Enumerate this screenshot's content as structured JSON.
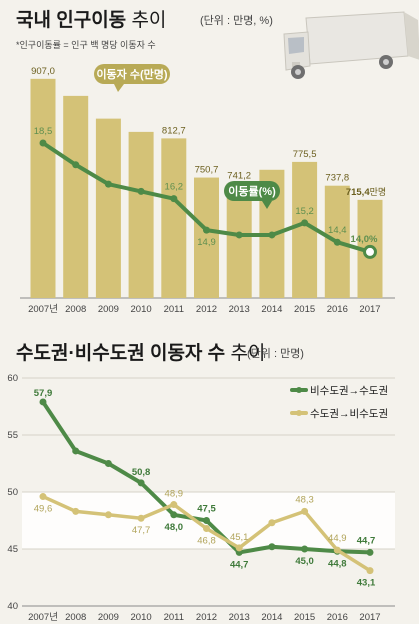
{
  "chart_data": [
    {
      "type": "bar+line",
      "title": "국내 인구이동",
      "title_suffix": "추이",
      "unit": "(단위 : 만명, %)",
      "note": "*인구이동률 = 인구 백 명당 이동자 수",
      "categories": [
        "2007년",
        "2008",
        "2009",
        "2010",
        "2011",
        "2012",
        "2013",
        "2014",
        "2015",
        "2016",
        "2017"
      ],
      "series": [
        {
          "name": "이동자 수(만명)",
          "kind": "bar",
          "values": [
            907.0,
            880.0,
            844.0,
            823.0,
            812.7,
            750.7,
            741.2,
            763.0,
            775.5,
            737.8,
            715.4
          ],
          "labels": [
            "907,0",
            "",
            "",
            "",
            "812,7",
            "750,7",
            "741,2",
            "",
            "775,5",
            "737,8",
            "715,4"
          ],
          "last_label_unit": "만명",
          "color": "#d4c277"
        },
        {
          "name": "이동률(%)",
          "kind": "line",
          "values": [
            18.5,
            17.6,
            16.8,
            16.5,
            16.2,
            14.9,
            14.7,
            14.7,
            15.2,
            14.4,
            14.0
          ],
          "labels": [
            "18,5",
            "",
            "",
            "",
            "16,2",
            "14,9",
            "",
            "",
            "15,2",
            "14,4",
            "14,0%"
          ],
          "color": "#4e8a47"
        }
      ],
      "grid": false
    },
    {
      "type": "line",
      "title": "수도권·비수도권 이동자 수",
      "title_suffix": "추이",
      "unit": "(단위 : 만명)",
      "categories": [
        "2007년",
        "2008",
        "2009",
        "2010",
        "2011",
        "2012",
        "2013",
        "2014",
        "2015",
        "2016",
        "2017"
      ],
      "yticks": [
        "60",
        "55",
        "50",
        "45",
        "40"
      ],
      "ylim": [
        40,
        60
      ],
      "series": [
        {
          "name": "비수도권→수도권",
          "values": [
            57.9,
            53.6,
            52.5,
            50.8,
            48.0,
            47.5,
            44.7,
            45.2,
            45.0,
            44.8,
            44.7
          ],
          "labels": [
            "57,9",
            "",
            "",
            "50,8",
            "48,0",
            "47,5",
            "44,7",
            "",
            "45,0",
            "44,8",
            "44,7"
          ],
          "color": "#4e8a47"
        },
        {
          "name": "수도권→비수도권",
          "values": [
            49.6,
            48.3,
            48.0,
            47.7,
            48.9,
            46.8,
            45.1,
            47.3,
            48.3,
            44.9,
            43.1
          ],
          "labels": [
            "49,6",
            "",
            "",
            "47,7",
            "48,9",
            "46,8",
            "45,1",
            "",
            "48,3",
            "44,9",
            "43,1"
          ],
          "color": "#d4c277"
        }
      ],
      "legend": "top-right",
      "grid": true
    }
  ]
}
